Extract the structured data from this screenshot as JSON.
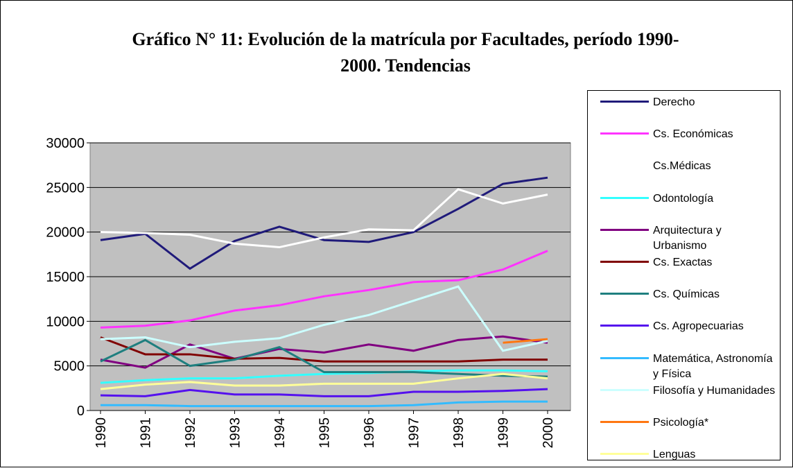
{
  "chart_data": {
    "type": "line",
    "title": "Gráfico N° 11: Evolución de la matrícula por Facultades, período 1990-2000. Tendencias",
    "x": [
      "1990",
      "1991",
      "1992",
      "1993",
      "1994",
      "1995",
      "1996",
      "1997",
      "1998",
      "1999",
      "2000"
    ],
    "ylim": [
      0,
      30000
    ],
    "yticks": [
      0,
      5000,
      10000,
      15000,
      20000,
      25000,
      30000
    ],
    "grid": true,
    "legend": "right",
    "series": [
      {
        "name": "Derecho",
        "color": "#1f1a7a",
        "values": [
          19100,
          19800,
          15900,
          19000,
          20600,
          19100,
          18900,
          20000,
          22600,
          25400,
          26100
        ]
      },
      {
        "name": "Cs. Económicas",
        "color": "#ff33ff",
        "values": [
          9300,
          9500,
          10100,
          11200,
          11800,
          12800,
          13500,
          14400,
          14600,
          15800,
          17900
        ]
      },
      {
        "name": "Cs.Médicas",
        "color": "#ffffff",
        "values": [
          20000,
          19900,
          19700,
          18700,
          18300,
          19400,
          20300,
          20200,
          24800,
          23200,
          24200
        ]
      },
      {
        "name": "Odontología",
        "color": "#33ffff",
        "values": [
          3100,
          3400,
          3600,
          3600,
          3900,
          4100,
          4200,
          4400,
          4500,
          4500,
          4400
        ]
      },
      {
        "name": "Arquitectura y Urbanismo",
        "color": "#800080",
        "values": [
          5700,
          4800,
          7400,
          5800,
          6900,
          6500,
          7400,
          6700,
          7900,
          8300,
          7600
        ]
      },
      {
        "name": "Cs. Exactas",
        "color": "#800000",
        "values": [
          8200,
          6300,
          6300,
          5800,
          5900,
          5500,
          5500,
          5500,
          5500,
          5700,
          5700
        ]
      },
      {
        "name": "Cs. Químicas",
        "color": "#1f7f7f",
        "values": [
          5500,
          7900,
          5000,
          5700,
          7100,
          4300,
          4300,
          4300,
          4100,
          3900,
          3800
        ]
      },
      {
        "name": "Cs. Agropecuarias",
        "color": "#5511ee",
        "values": [
          1700,
          1600,
          2300,
          1800,
          1800,
          1600,
          1600,
          2100,
          2100,
          2200,
          2400
        ]
      },
      {
        "name": "Matemática, Astronomía y Física",
        "color": "#33bbff",
        "values": [
          600,
          600,
          500,
          500,
          500,
          500,
          500,
          600,
          900,
          1000,
          1000
        ]
      },
      {
        "name": "Filosofía y Humanidades",
        "color": "#ccffff",
        "values": [
          8000,
          8200,
          7100,
          7700,
          8100,
          9600,
          10700,
          12300,
          13900,
          6700,
          7800
        ]
      },
      {
        "name": "Psicología*",
        "color": "#ff7711",
        "values": [
          null,
          null,
          null,
          null,
          null,
          null,
          null,
          null,
          null,
          7600,
          8000
        ]
      },
      {
        "name": "Lenguas",
        "color": "#ffff99",
        "values": [
          2400,
          2900,
          3200,
          2800,
          2800,
          3000,
          3000,
          3000,
          3600,
          4100,
          3600
        ]
      }
    ]
  }
}
